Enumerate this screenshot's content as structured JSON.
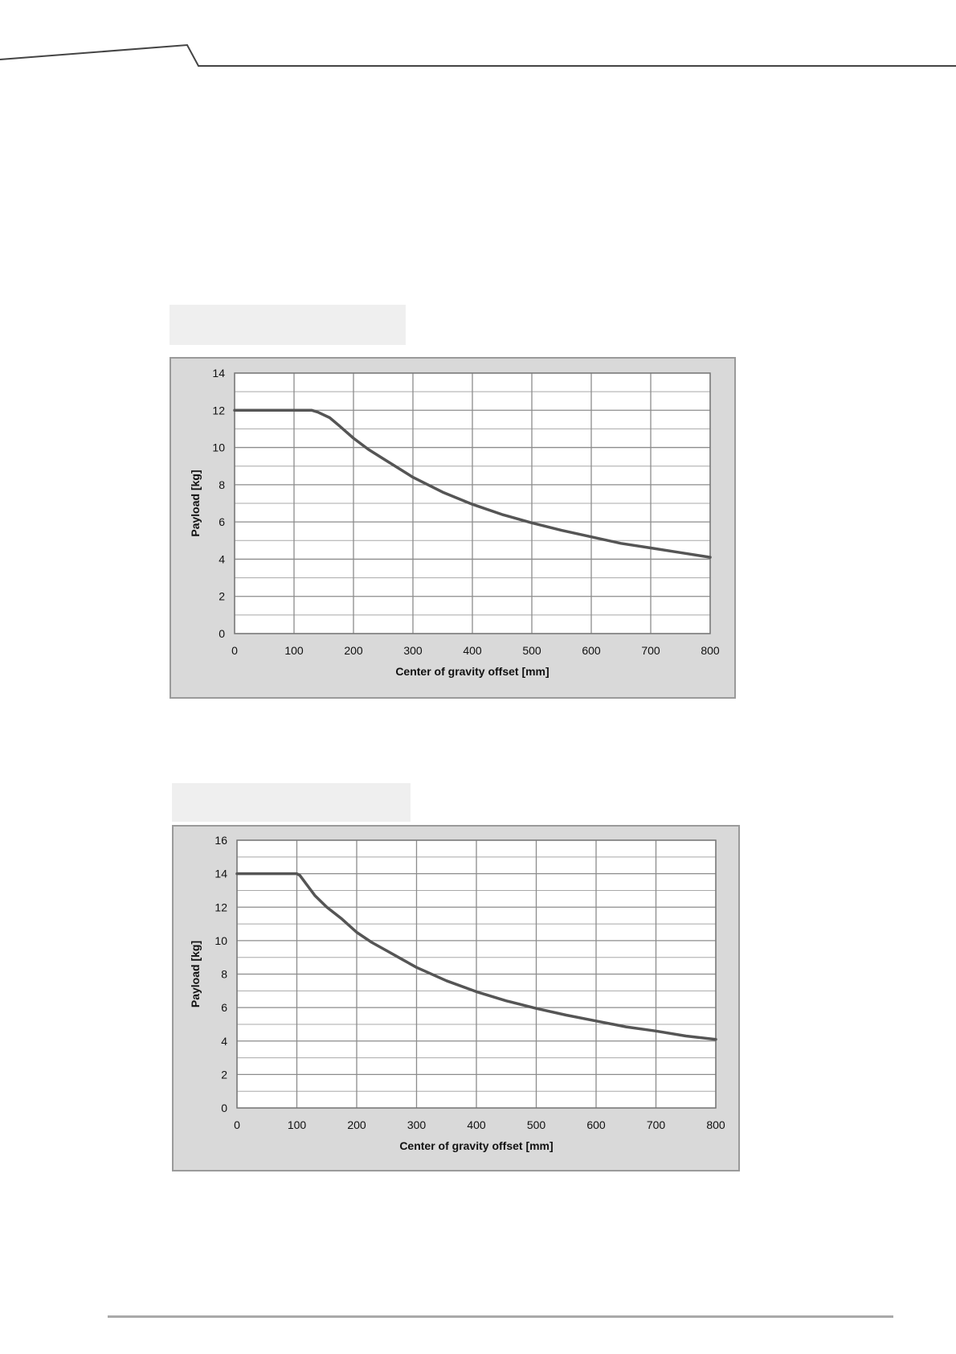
{
  "page": {
    "captions": [
      "",
      ""
    ]
  },
  "chart_data": [
    {
      "type": "line",
      "title": "",
      "xlabel": "Center of gravity offset [mm]",
      "ylabel": "Payload [kg]",
      "xlim": [
        0,
        800
      ],
      "ylim": [
        0,
        14
      ],
      "x_ticks": [
        0,
        100,
        200,
        300,
        400,
        500,
        600,
        700,
        800
      ],
      "y_ticks": [
        0,
        2,
        4,
        6,
        8,
        10,
        12,
        14
      ],
      "grid": true,
      "legend": "none",
      "series": [
        {
          "name": "",
          "color": "#555555",
          "x": [
            0,
            50,
            100,
            130,
            140,
            160,
            175,
            200,
            225,
            250,
            275,
            300,
            350,
            400,
            450,
            500,
            550,
            600,
            650,
            700,
            750,
            800
          ],
          "y": [
            12,
            12,
            12,
            12,
            11.9,
            11.6,
            11.2,
            10.5,
            9.9,
            9.4,
            8.9,
            8.4,
            7.6,
            6.95,
            6.4,
            5.95,
            5.55,
            5.2,
            4.85,
            4.6,
            4.35,
            4.1
          ]
        }
      ]
    },
    {
      "type": "line",
      "title": "",
      "xlabel": "Center of gravity offset [mm]",
      "ylabel": "Payload [kg]",
      "xlim": [
        0,
        800
      ],
      "ylim": [
        0,
        16
      ],
      "x_ticks": [
        0,
        100,
        200,
        300,
        400,
        500,
        600,
        700,
        800
      ],
      "y_ticks": [
        0,
        2,
        4,
        6,
        8,
        10,
        12,
        14,
        16
      ],
      "grid": true,
      "legend": "none",
      "series": [
        {
          "name": "",
          "color": "#555555",
          "x": [
            0,
            50,
            100,
            105,
            130,
            150,
            175,
            200,
            225,
            250,
            275,
            300,
            350,
            400,
            450,
            500,
            550,
            600,
            650,
            700,
            750,
            800
          ],
          "y": [
            14,
            14,
            14,
            13.9,
            12.7,
            12,
            11.3,
            10.5,
            9.9,
            9.4,
            8.9,
            8.4,
            7.6,
            6.95,
            6.4,
            5.95,
            5.55,
            5.2,
            4.85,
            4.6,
            4.3,
            4.1
          ]
        }
      ]
    }
  ]
}
